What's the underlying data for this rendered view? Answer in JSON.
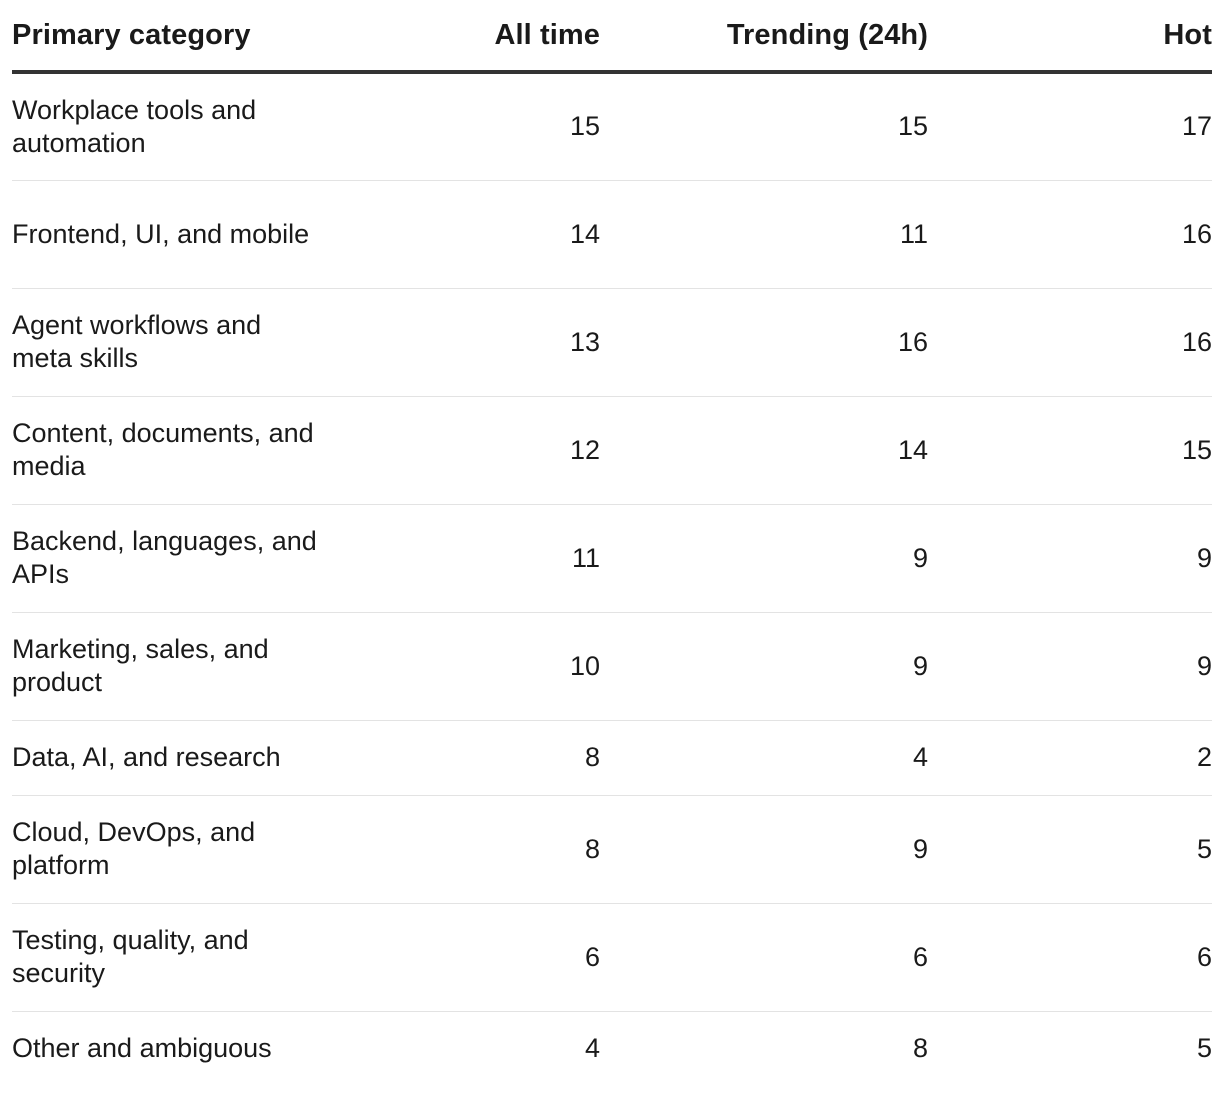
{
  "table": {
    "headers": [
      "Primary category",
      "All time",
      "Trending (24h)",
      "Hot"
    ],
    "rows": [
      [
        "Workplace tools and automation",
        "15",
        "15",
        "17"
      ],
      [
        "Frontend, UI, and mobile",
        "14",
        "11",
        "16"
      ],
      [
        "Agent workflows and meta skills",
        "13",
        "16",
        "16"
      ],
      [
        "Content, documents, and media",
        "12",
        "14",
        "15"
      ],
      [
        "Backend, languages, and APIs",
        "11",
        "9",
        "9"
      ],
      [
        "Marketing, sales, and product",
        "10",
        "9",
        "9"
      ],
      [
        "Data, AI, and research",
        "8",
        "4",
        "2"
      ],
      [
        "Cloud, DevOps, and platform",
        "8",
        "9",
        "5"
      ],
      [
        "Testing, quality, and security",
        "6",
        "6",
        "6"
      ],
      [
        "Other and ambiguous",
        "4",
        "8",
        "5"
      ]
    ]
  }
}
